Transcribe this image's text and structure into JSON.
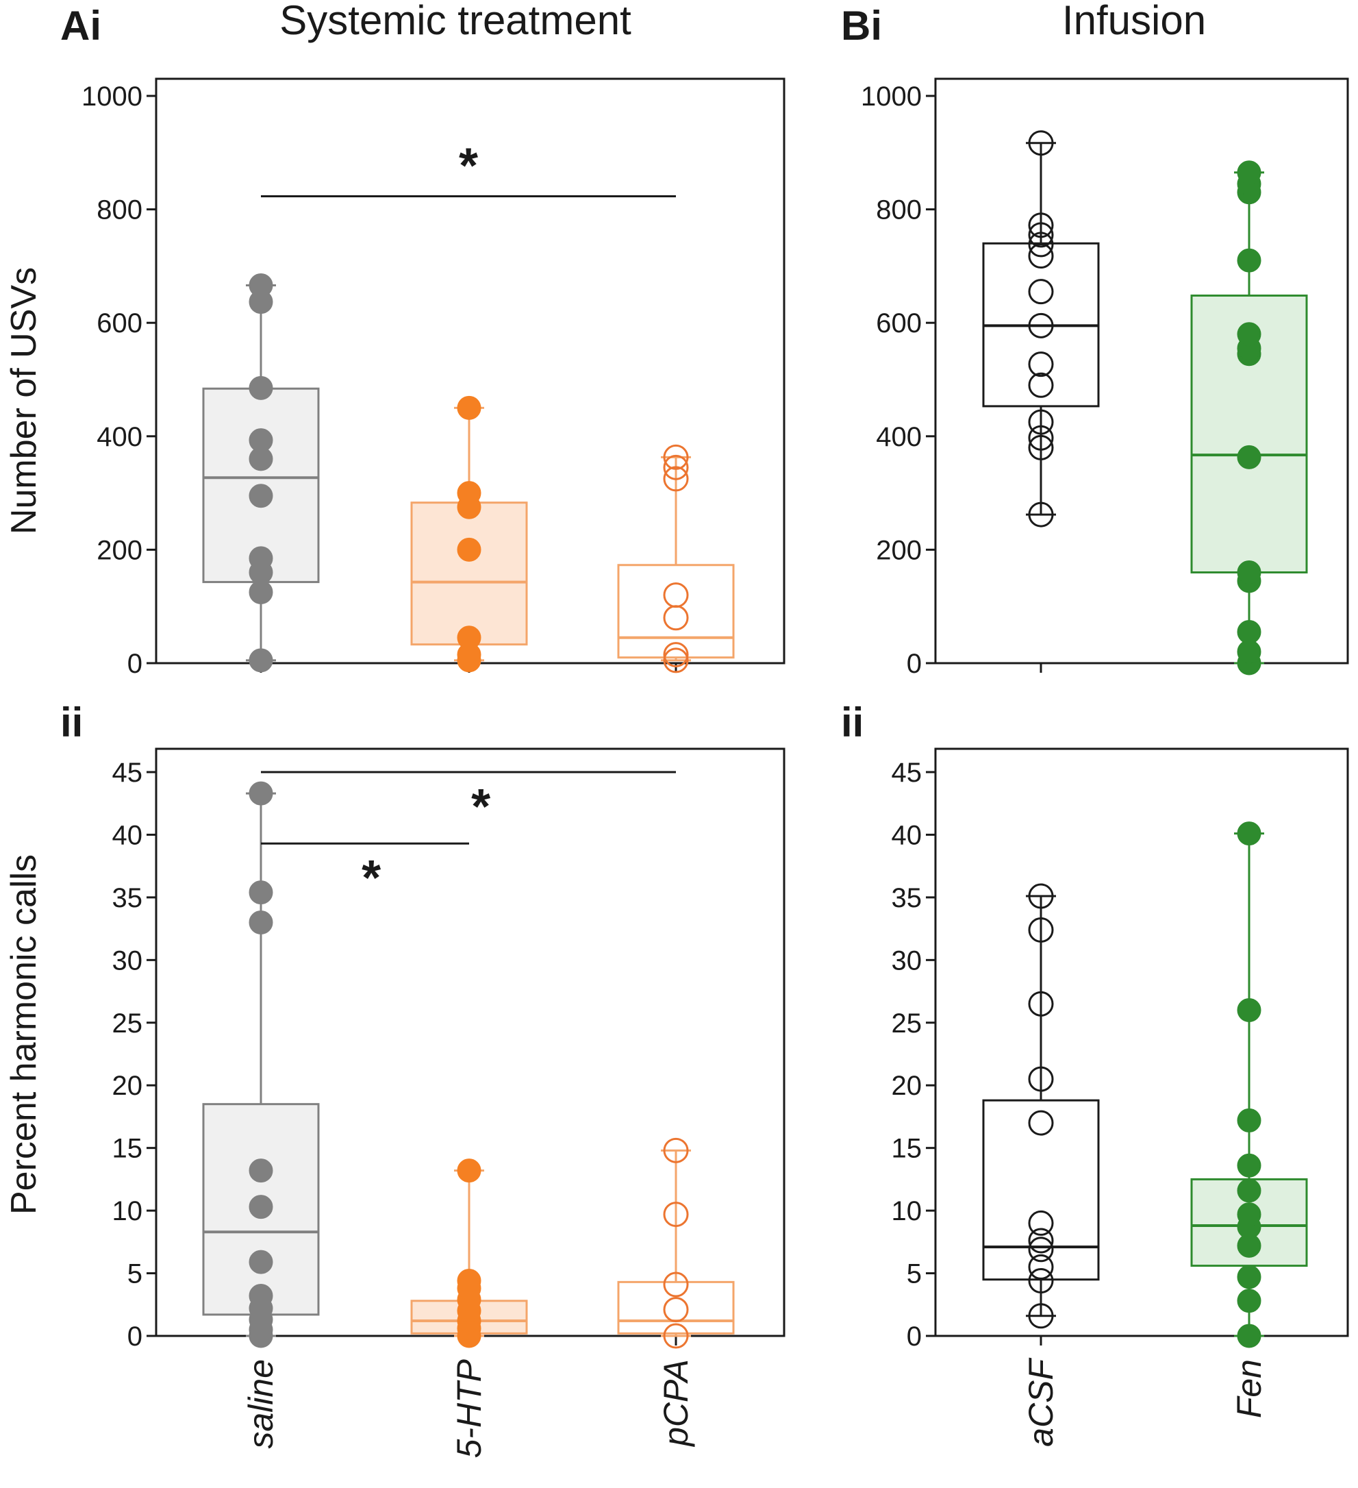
{
  "figure": {
    "row_labels": [
      "Ai",
      "ii",
      "Bi",
      "ii"
    ],
    "section_titles": [
      "Systemic treatment",
      "Infusion"
    ]
  },
  "chart_data": [
    {
      "id": "Ai",
      "type": "box",
      "panel_label": "Ai",
      "title": "Systemic treatment",
      "ylabel": "Number of USVs",
      "ylim": [
        0,
        1000
      ],
      "yticks": [
        0,
        200,
        400,
        600,
        800,
        1000
      ],
      "show_category_labels": false,
      "categories": [
        "saline",
        "5-HTP",
        "pCPA"
      ],
      "groups": [
        {
          "name": "saline",
          "color": "#808080",
          "fill": "#f0f0f0",
          "filled_points": true,
          "whisker_low": 5,
          "q1": 143,
          "median": 327,
          "q3": 484,
          "whisker_high": 666,
          "points": [
            5,
            125,
            160,
            185,
            295,
            360,
            393,
            485,
            637,
            666
          ]
        },
        {
          "name": "5-HTP",
          "color": "#f4a56a",
          "point_color": "#f58022",
          "fill": "#fde5d4",
          "filled_points": true,
          "whisker_low": 5,
          "q1": 33,
          "median": 143,
          "q3": 283,
          "whisker_high": 450,
          "points": [
            5,
            15,
            45,
            200,
            275,
            300,
            450
          ]
        },
        {
          "name": "pCPA",
          "color": "#f4a56a",
          "point_color": "#ec7530",
          "fill": "#ffffff",
          "filled_points": false,
          "whisker_low": 5,
          "q1": 10,
          "median": 45,
          "q3": 173,
          "whisker_high": 363,
          "points": [
            5,
            15,
            80,
            120,
            325,
            345,
            363
          ]
        }
      ],
      "significance": [
        {
          "from": "saline",
          "to": "pCPA",
          "y": 823,
          "label": "*",
          "label_pos": 0.5,
          "label_side": "above"
        }
      ]
    },
    {
      "id": "Aii",
      "type": "box",
      "panel_label": "ii",
      "title": "",
      "ylabel": "Percent harmonic calls",
      "ylim": [
        0,
        45
      ],
      "yticks": [
        0,
        5,
        10,
        15,
        20,
        25,
        30,
        35,
        40,
        45
      ],
      "show_category_labels": true,
      "categories": [
        "saline",
        "5-HTP",
        "pCPA"
      ],
      "groups": [
        {
          "name": "saline",
          "color": "#808080",
          "fill": "#f0f0f0",
          "filled_points": true,
          "whisker_low": 0,
          "q1": 1.7,
          "median": 8.3,
          "q3": 18.5,
          "whisker_high": 43.3,
          "points": [
            0,
            0.5,
            1.3,
            2.2,
            3.2,
            5.9,
            10.3,
            13.2,
            33,
            35.4,
            43.3
          ]
        },
        {
          "name": "5-HTP",
          "color": "#f4a56a",
          "point_color": "#f58022",
          "fill": "#fde5d4",
          "filled_points": true,
          "whisker_low": 0,
          "q1": 0.2,
          "median": 1.2,
          "q3": 2.8,
          "whisker_high": 13.2,
          "points": [
            0,
            0.6,
            1.2,
            2,
            2.9,
            3.8,
            4.4,
            13.2
          ]
        },
        {
          "name": "pCPA",
          "color": "#f4a56a",
          "point_color": "#ec7530",
          "fill": "#ffffff",
          "filled_points": false,
          "whisker_low": 0,
          "q1": 0.2,
          "median": 1.2,
          "q3": 4.3,
          "whisker_high": 14.8,
          "points": [
            0,
            2.1,
            4.1,
            9.7,
            14.8
          ]
        }
      ],
      "significance": [
        {
          "from": "saline",
          "to": "pCPA",
          "y": 45,
          "label": "*",
          "label_pos": 0.53,
          "label_side": "below"
        },
        {
          "from": "saline",
          "to": "5-HTP",
          "y": 39.3,
          "label": "*",
          "label_pos": 0.53,
          "label_side": "below"
        }
      ]
    },
    {
      "id": "Bi",
      "type": "box",
      "panel_label": "Bi",
      "title": "Infusion",
      "ylabel": "",
      "ylim": [
        0,
        1000
      ],
      "yticks": [
        0,
        200,
        400,
        600,
        800,
        1000
      ],
      "show_category_labels": false,
      "categories": [
        "aCSF",
        "Fen"
      ],
      "groups": [
        {
          "name": "aCSF",
          "color": "#1a1a1a",
          "fill": "#ffffff",
          "filled_points": false,
          "whisker_low": 262,
          "q1": 453,
          "median": 595,
          "q3": 740,
          "whisker_high": 917,
          "points": [
            262,
            380,
            397,
            425,
            490,
            527,
            595,
            655,
            718,
            738,
            755,
            772,
            917
          ]
        },
        {
          "name": "Fen",
          "color": "#2e8b2e",
          "fill": "#dff0df",
          "filled_points": true,
          "whisker_low": 0,
          "q1": 160,
          "median": 367,
          "q3": 648,
          "whisker_high": 865,
          "points": [
            0,
            20,
            55,
            145,
            160,
            363,
            545,
            555,
            580,
            710,
            830,
            845,
            865
          ]
        }
      ],
      "significance": []
    },
    {
      "id": "Bii",
      "type": "box",
      "panel_label": "ii",
      "title": "",
      "ylabel": "",
      "ylim": [
        0,
        45
      ],
      "yticks": [
        0,
        5,
        10,
        15,
        20,
        25,
        30,
        35,
        40,
        45
      ],
      "show_category_labels": true,
      "categories": [
        "aCSF",
        "Fen"
      ],
      "groups": [
        {
          "name": "aCSF",
          "color": "#1a1a1a",
          "fill": "#ffffff",
          "filled_points": false,
          "whisker_low": 1.6,
          "q1": 4.5,
          "median": 7.1,
          "q3": 18.8,
          "whisker_high": 35.1,
          "points": [
            1.6,
            4.4,
            5.5,
            6.9,
            7.6,
            9,
            17,
            20.5,
            26.5,
            32.4,
            35.1
          ]
        },
        {
          "name": "Fen",
          "color": "#2e8b2e",
          "fill": "#dff0df",
          "filled_points": true,
          "whisker_low": 0,
          "q1": 5.6,
          "median": 8.8,
          "q3": 12.5,
          "whisker_high": 40.1,
          "points": [
            0,
            2.8,
            4.7,
            7.2,
            8.7,
            9.7,
            11.6,
            13.6,
            17.2,
            26,
            40.1
          ]
        }
      ],
      "significance": []
    }
  ]
}
